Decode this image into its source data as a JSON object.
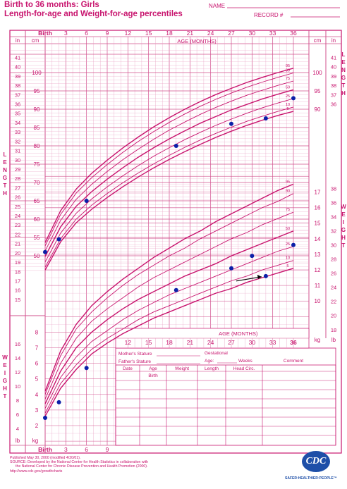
{
  "header": {
    "title_line1": "Birth to 36 months: Girls",
    "title_line2": "Length-for-age and Weight-for-age percentiles",
    "name_label": "NAME",
    "record_label": "RECORD #"
  },
  "chart_data": {
    "type": "line",
    "title": "Length-for-age and Weight-for-age percentiles",
    "age_axis": {
      "label": "AGE (MONTHS)",
      "range": [
        0,
        36
      ],
      "top_ticks": [
        "Birth",
        "3",
        "6",
        "9",
        "12",
        "15",
        "18",
        "21",
        "24",
        "27",
        "30",
        "33",
        "36"
      ],
      "bottom_ticks": [
        "Birth",
        "3",
        "6",
        "9"
      ],
      "weight_panel_ticks": [
        "12",
        "15",
        "18",
        "21",
        "24",
        "27",
        "30",
        "33",
        "36"
      ]
    },
    "side_labels": {
      "length": "LENGTH",
      "weight": "WEIGHT"
    },
    "unit_labels": {
      "in": "in",
      "cm": "cm",
      "kg": "kg",
      "lb": "lb"
    },
    "length_cm_ticks": [
      50,
      55,
      60,
      65,
      70,
      75,
      80,
      85,
      90,
      95,
      100
    ],
    "length_in_ticks": [
      15,
      16,
      17,
      18,
      19,
      20,
      21,
      22,
      23,
      24,
      25,
      26,
      27,
      28,
      29,
      30,
      31,
      32,
      33,
      34,
      35,
      36,
      37,
      38,
      39,
      40,
      41
    ],
    "right_length_in_ticks": [
      30,
      31,
      32,
      33,
      34,
      35,
      36,
      37,
      38,
      39,
      40,
      41
    ],
    "weight_kg_ticks": [
      2,
      3,
      4,
      5,
      6,
      7,
      8,
      9,
      10,
      11,
      12,
      13,
      14,
      15,
      16,
      17
    ],
    "weight_lb_ticks_left": [
      4,
      6,
      8,
      10,
      12,
      14,
      16
    ],
    "weight_lb_ticks_right": [
      16,
      18,
      20,
      22,
      24,
      26,
      28,
      30,
      32,
      34,
      36,
      38
    ],
    "percentile_labels": [
      "95",
      "90",
      "75",
      "50",
      "25",
      "10",
      "5"
    ],
    "series": [
      {
        "name": "Length",
        "unit": "cm",
        "percentiles": {
          "5": [
            46.1,
            53.8,
            59.0,
            62.7,
            65.9,
            68.8,
            71.5,
            74.0,
            76.3,
            78.4,
            80.4,
            82.3,
            84.0,
            85.6,
            87.0,
            88.3,
            89.4
          ],
          "10": [
            46.9,
            54.7,
            60.0,
            63.8,
            67.0,
            69.9,
            72.6,
            75.1,
            77.4,
            79.6,
            81.6,
            83.4,
            85.1,
            86.7,
            88.1,
            89.4,
            90.6
          ],
          "25": [
            48.3,
            56.2,
            61.6,
            65.5,
            68.8,
            71.8,
            74.6,
            77.2,
            79.5,
            81.7,
            83.7,
            85.6,
            87.3,
            88.9,
            90.4,
            91.7,
            92.9
          ],
          "50": [
            49.8,
            57.9,
            63.5,
            67.5,
            70.9,
            74.0,
            76.9,
            79.5,
            81.9,
            84.1,
            86.2,
            88.0,
            89.8,
            91.3,
            92.8,
            94.1,
            95.3
          ],
          "75": [
            51.3,
            59.7,
            65.4,
            69.5,
            73.0,
            76.2,
            79.1,
            81.8,
            84.3,
            86.5,
            88.6,
            90.5,
            92.2,
            93.8,
            95.2,
            96.5,
            97.7
          ],
          "90": [
            52.7,
            61.3,
            67.1,
            71.3,
            74.9,
            78.2,
            81.2,
            83.9,
            86.4,
            88.7,
            90.8,
            92.7,
            94.4,
            96.0,
            97.4,
            98.7,
            99.9
          ],
          "95": [
            53.6,
            62.3,
            68.2,
            72.5,
            76.1,
            79.4,
            82.4,
            85.2,
            87.7,
            90.0,
            92.1,
            94.0,
            95.7,
            97.3,
            98.7,
            100.0,
            101.2
          ]
        },
        "measurements": [
          {
            "age": 0,
            "value": 51.0
          },
          {
            "age": 2,
            "value": 54.5
          },
          {
            "age": 6,
            "value": 65.0
          },
          {
            "age": 19,
            "value": 80.0
          },
          {
            "age": 27,
            "value": 86.0
          },
          {
            "age": 32,
            "value": 87.5
          },
          {
            "age": 36,
            "value": 93.0
          }
        ]
      },
      {
        "name": "Weight",
        "unit": "kg",
        "percentiles": {
          "5": [
            2.6,
            4.4,
            5.6,
            6.6,
            7.3,
            7.9,
            8.4,
            8.9,
            9.3,
            9.7,
            10.1,
            10.5,
            10.8,
            11.2,
            11.5,
            11.8,
            12.1
          ],
          "10": [
            2.8,
            4.7,
            5.9,
            6.9,
            7.6,
            8.2,
            8.8,
            9.3,
            9.7,
            10.1,
            10.5,
            10.9,
            11.3,
            11.6,
            12.0,
            12.3,
            12.6
          ],
          "25": [
            3.1,
            5.1,
            6.4,
            7.4,
            8.1,
            8.8,
            9.4,
            9.9,
            10.4,
            10.8,
            11.2,
            11.6,
            12.0,
            12.4,
            12.8,
            13.2,
            13.5
          ],
          "50": [
            3.4,
            5.5,
            7.0,
            8.0,
            8.8,
            9.5,
            10.1,
            10.6,
            11.1,
            11.6,
            12.0,
            12.4,
            12.9,
            13.3,
            13.7,
            14.1,
            14.5
          ],
          "75": [
            3.7,
            6.0,
            7.6,
            8.7,
            9.5,
            10.2,
            10.9,
            11.5,
            12.0,
            12.5,
            13.0,
            13.5,
            14.0,
            14.4,
            14.9,
            15.3,
            15.7
          ],
          "90": [
            4.0,
            6.5,
            8.2,
            9.3,
            10.2,
            11.0,
            11.7,
            12.3,
            12.9,
            13.4,
            14.0,
            14.5,
            15.0,
            15.5,
            16.0,
            16.4,
            16.9
          ],
          "95": [
            4.2,
            6.8,
            8.5,
            9.7,
            10.6,
            11.4,
            12.1,
            12.8,
            13.4,
            14.0,
            14.5,
            15.1,
            15.6,
            16.1,
            16.6,
            17.1,
            17.5
          ]
        },
        "measurements": [
          {
            "age": 0,
            "value": 2.5
          },
          {
            "age": 2,
            "value": 3.5
          },
          {
            "age": 6,
            "value": 5.7
          },
          {
            "age": 19,
            "value": 10.7
          },
          {
            "age": 27,
            "value": 12.1
          },
          {
            "age": 30,
            "value": 12.9
          },
          {
            "age": 32,
            "value": 11.6
          },
          {
            "age": 36,
            "value": 13.6
          }
        ]
      }
    ],
    "annotation": {
      "type": "arrow",
      "points_to_age": 32,
      "points_to_weight": 11.6
    }
  },
  "table": {
    "mothers_stature": "Mother's Stature",
    "fathers_stature": "Father's Stature",
    "gestational": "Gestational",
    "age": "Age:",
    "weeks": "Weeks",
    "comment": "Comment",
    "col_date": "Date",
    "col_age": "Age",
    "col_weight": "Weight",
    "col_length": "Length",
    "col_head": "Head Circ.",
    "birth": "Birth"
  },
  "footer": {
    "line1": "Published May 30, 2000 (modified 4/20/01).",
    "line2": "SOURCE: Developed by the National Center for Health Statistics in collaboration with",
    "line3": "the National Center for Chronic Disease Prevention and Health Promotion (2000).",
    "line4": "http://www.cdc.gov/growthcharts"
  },
  "logo": {
    "text": "CDC",
    "tagline": "SAFER·HEALTHIER·PEOPLE™"
  },
  "colors": {
    "grid": "#e79ac0",
    "grid_major": "#d2508e",
    "curve": "#c8146e",
    "text": "#c8146e",
    "point": "#0b1fa8"
  }
}
